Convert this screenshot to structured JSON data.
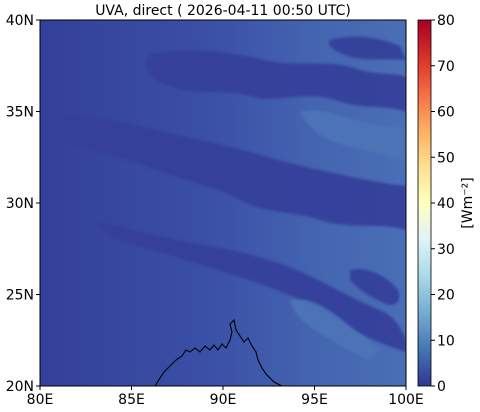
{
  "title": "UVA, direct ( 2026-04-11 00:50 UTC)",
  "map": {
    "lon_range": [
      80,
      100
    ],
    "lat_range": [
      20,
      40
    ],
    "x_ticks": [
      {
        "value": 80,
        "label": "80E"
      },
      {
        "value": 85,
        "label": "85E"
      },
      {
        "value": 90,
        "label": "90E"
      },
      {
        "value": 95,
        "label": "95E"
      },
      {
        "value": 100,
        "label": "100E"
      }
    ],
    "y_ticks": [
      {
        "value": 20,
        "label": "20N"
      },
      {
        "value": 25,
        "label": "25N"
      },
      {
        "value": 30,
        "label": "30N"
      },
      {
        "value": 35,
        "label": "35N"
      },
      {
        "value": 40,
        "label": "40N"
      }
    ],
    "field_range_wm2": [
      0,
      12
    ]
  },
  "colorbar": {
    "label": "[Wm⁻²]",
    "min": 0,
    "max": 80,
    "ticks": [
      0,
      10,
      20,
      30,
      40,
      50,
      60,
      70,
      80
    ],
    "colormap": "RdYlBu_r",
    "colors": [
      "#313695",
      "#4575b4",
      "#74add1",
      "#abd9e9",
      "#e0f3f8",
      "#ffffbf",
      "#fee090",
      "#fdae61",
      "#f46d43",
      "#d73027",
      "#a50026"
    ]
  }
}
